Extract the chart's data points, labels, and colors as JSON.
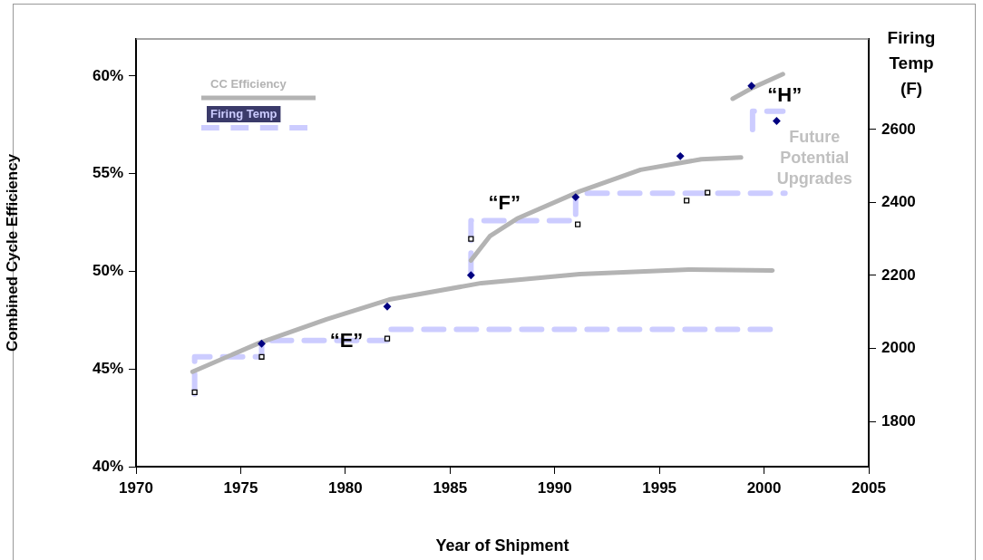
{
  "chart_data": {
    "type": "line",
    "xlabel": "Year of Shipment",
    "ylabel": "Combined Cycle Efficiency",
    "y2label": "Firing Temp (F)",
    "xlim": [
      1970,
      2005
    ],
    "xticks": [
      1970,
      1975,
      1980,
      1985,
      1990,
      1995,
      2000,
      2005
    ],
    "ylim": [
      40,
      61.9
    ],
    "yticks": [
      {
        "value": 40,
        "label": "40%"
      },
      {
        "value": 45,
        "label": "45%"
      },
      {
        "value": 50,
        "label": "50%"
      },
      {
        "value": 55,
        "label": "55%"
      },
      {
        "value": 60,
        "label": "60%"
      }
    ],
    "y2lim": [
      1676,
      2848
    ],
    "y2ticks": [
      1800,
      2000,
      2200,
      2400,
      2600
    ],
    "grid": false,
    "legend": "top left",
    "series": [
      {
        "name": "CC Efficiency",
        "type": "line",
        "color": "#b3b3b3",
        "line_style": "solid",
        "x": [
          1972.7,
          1975.9,
          1979.1,
          1982.1,
          1986.5,
          1991.2,
          1996.4,
          2000.4,
          null,
          1986.0,
          1986.9,
          1988.2,
          1991.2,
          1994.1,
          1997.0,
          1998.9,
          null,
          1998.5,
          1999.45,
          2000.9
        ],
        "values": [
          44.86,
          46.34,
          47.55,
          48.56,
          49.4,
          49.86,
          50.09,
          50.05,
          null,
          50.56,
          51.8,
          52.7,
          54.1,
          55.2,
          55.74,
          55.83,
          null,
          58.84,
          59.4,
          60.1
        ]
      },
      {
        "name": "Firing Temp",
        "type": "step",
        "axis": "y2",
        "color": "#ccccff",
        "line_style": "dashed",
        "x": [
          1972.8,
          1976,
          1982,
          1996.3,
          2000.3,
          null,
          1986,
          1986,
          1991,
          1996.3,
          2001,
          null,
          1999.45,
          1999.45,
          2000.9
        ],
        "values": [
          1875,
          1977,
          2022,
          2052,
          2052,
          null,
          2207,
          2300,
          2350,
          2425,
          2425,
          null,
          2600,
          2650,
          2650
        ]
      },
      {
        "type": "scatter",
        "marker": "diamond",
        "color": "#000080",
        "x": [
          1976.0,
          1982.0,
          1986.0,
          1991.0,
          1996.0,
          1999.4,
          2000.6
        ],
        "values": [
          46.3,
          48.2,
          49.8,
          53.8,
          55.9,
          59.5,
          57.7
        ]
      },
      {
        "type": "scatter",
        "marker": "square",
        "axis": "y2",
        "color": "#000000",
        "x": [
          1972.8,
          1976.0,
          1982.0,
          1986.0,
          1991.1,
          1996.3,
          1997.3
        ],
        "values": [
          1880,
          1977,
          2027,
          2300,
          2340,
          2405,
          2427
        ]
      }
    ],
    "annotations": [
      {
        "text": "“E”",
        "x": 1980.05,
        "y": 46.39
      },
      {
        "text": "“F”",
        "x": 1988.2,
        "y": 52.7
      },
      {
        "text": "“H”",
        "x": 1999.9,
        "y": 59.6
      },
      {
        "text": "Future Potential Upgrades",
        "x": 2000.9,
        "y": 53.9
      }
    ]
  }
}
